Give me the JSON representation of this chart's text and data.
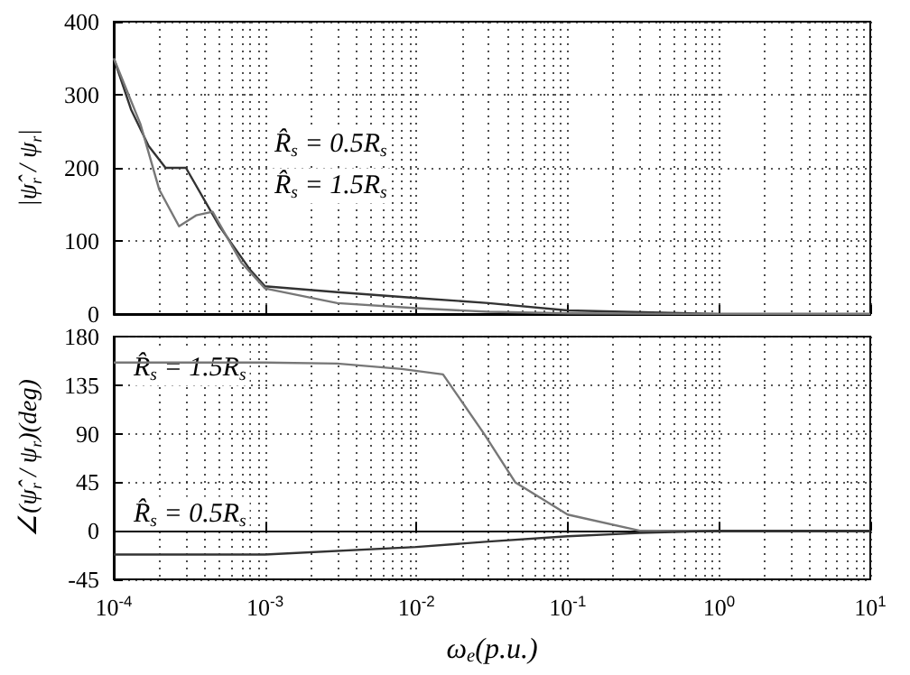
{
  "chart_data": [
    {
      "type": "line",
      "ylabel": "|ψ̂$_{r}$ / ψ$_{r}$|",
      "tick_labels": "y",
      "log": "x",
      "grid": true,
      "marker": "none",
      "line_style": "solid",
      "xlim": [
        0.0001,
        10
      ],
      "xticks": [
        {
          "value": 0.0001,
          "label": null
        },
        {
          "value": 0.001,
          "label": null
        },
        {
          "value": 0.01,
          "label": null
        },
        {
          "value": 0.1,
          "label": null
        },
        {
          "value": 1,
          "label": null
        },
        {
          "value": 10,
          "label": null
        }
      ],
      "ylim": [
        0,
        400
      ],
      "yticks": [
        0,
        100,
        200,
        300,
        400
      ],
      "series": [
        {
          "color": "#333333",
          "x": [
            0.0001,
            0.00013,
            0.00017,
            0.00022,
            0.0003,
            0.0005,
            0.0008,
            0.001,
            0.003,
            0.01,
            0.03,
            0.1,
            1,
            10
          ],
          "values": [
            350,
            280,
            230,
            200,
            200,
            120,
            60,
            38,
            30,
            22,
            15,
            5,
            0,
            0
          ]
        },
        {
          "color": "#777777",
          "x": [
            0.0001,
            0.00015,
            0.0002,
            0.00027,
            0.00035,
            0.00045,
            0.0007,
            0.001,
            0.003,
            0.01,
            0.03,
            0.1,
            1,
            10
          ],
          "values": [
            350,
            260,
            170,
            120,
            135,
            140,
            70,
            35,
            15,
            8,
            3,
            1,
            0,
            0
          ]
        }
      ],
      "annotations": [
        "R̂$_{s}$ = 0.5R$_{s}$",
        "R̂$_{s}$ = 1.5R$_{s}$"
      ]
    },
    {
      "type": "line",
      "xlabel": "ω$_{e}$(p.u.)",
      "ylabel": "∠(ψ̂$_{r}$ / ψ$_{r}$)(deg)",
      "log": "x",
      "grid": true,
      "marker": "none",
      "line_style": "solid",
      "xlim": [
        0.0001,
        10
      ],
      "xticks": [
        {
          "value": 0.0001,
          "label": "10$^{-4}$"
        },
        {
          "value": 0.001,
          "label": "10$^{-3}$"
        },
        {
          "value": 0.01,
          "label": "10$^{-2}$"
        },
        {
          "value": 0.1,
          "label": "10$^{-1}$"
        },
        {
          "value": 1,
          "label": "10$^{0}$"
        },
        {
          "value": 10,
          "label": "10$^{1}$"
        }
      ],
      "ylim": [
        -45,
        180
      ],
      "yticks": [
        -45,
        0,
        45,
        90,
        135,
        180
      ],
      "series": [
        {
          "color": "#777777",
          "x": [
            0.0001,
            0.001,
            0.003,
            0.008,
            0.015,
            0.028,
            0.045,
            0.1,
            0.3,
            1,
            10
          ],
          "values": [
            156,
            156,
            155,
            150,
            145,
            90,
            45,
            15,
            0,
            0,
            0
          ]
        },
        {
          "color": "#333333",
          "x": [
            0.0001,
            0.001,
            0.01,
            0.03,
            0.1,
            0.3,
            1,
            10
          ],
          "values": [
            -22,
            -22,
            -15,
            -10,
            -5,
            -2,
            0,
            0
          ]
        }
      ],
      "annotations": [
        "R̂$_{s}$ = 1.5R$_{s}$",
        "R̂$_{s}$ = 0.5R$_{s}$"
      ]
    }
  ]
}
